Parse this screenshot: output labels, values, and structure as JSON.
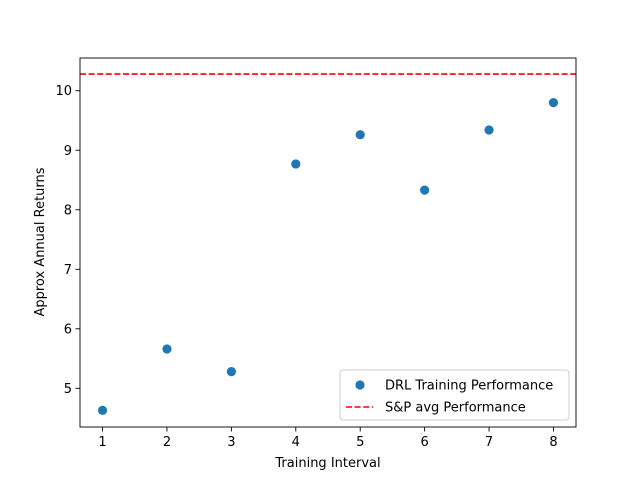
{
  "chart_data": {
    "type": "scatter",
    "title": "",
    "xlabel": "Training Interval",
    "ylabel": "Approx Annual Returns",
    "xlim": [
      0.65,
      8.35
    ],
    "ylim": [
      4.35,
      10.55
    ],
    "x_ticks": [
      1,
      2,
      3,
      4,
      5,
      6,
      7,
      8
    ],
    "y_ticks": [
      5,
      6,
      7,
      8,
      9,
      10
    ],
    "grid": false,
    "legend_position": "lower-right",
    "series": [
      {
        "name": "DRL Training Performance",
        "kind": "scatter",
        "color": "#1f77b4",
        "x": [
          1,
          2,
          3,
          4,
          5,
          6,
          7,
          8
        ],
        "y": [
          4.63,
          5.66,
          5.28,
          8.77,
          9.26,
          8.33,
          9.34,
          9.8
        ]
      },
      {
        "name": "S&P avg Performance",
        "kind": "hline",
        "color": "#ff0000",
        "linestyle": "dashed",
        "y": 10.28
      }
    ]
  }
}
